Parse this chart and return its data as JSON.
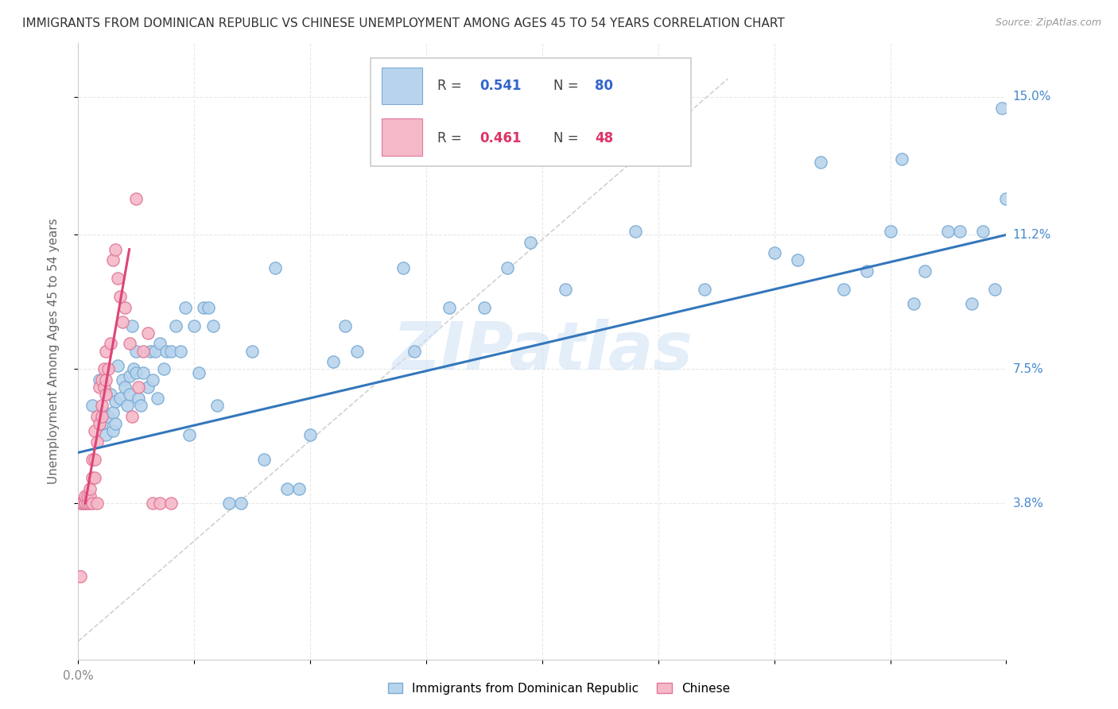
{
  "title": "IMMIGRANTS FROM DOMINICAN REPUBLIC VS CHINESE UNEMPLOYMENT AMONG AGES 45 TO 54 YEARS CORRELATION CHART",
  "source": "Source: ZipAtlas.com",
  "ylabel": "Unemployment Among Ages 45 to 54 years",
  "ytick_labels": [
    "3.8%",
    "7.5%",
    "11.2%",
    "15.0%"
  ],
  "ytick_values": [
    0.038,
    0.075,
    0.112,
    0.15
  ],
  "xlim": [
    0.0,
    0.4
  ],
  "ylim": [
    -0.005,
    0.165
  ],
  "legend_r1_text": "R = ",
  "legend_r1_val": "0.541",
  "legend_n1_text": "N = ",
  "legend_n1_val": "80",
  "legend_r2_text": "R = ",
  "legend_r2_val": "0.461",
  "legend_n2_text": "N = ",
  "legend_n2_val": "48",
  "watermark": "ZIPatlas",
  "blue_color": "#b8d4ed",
  "blue_edge": "#7aabd4",
  "pink_color": "#f5b8c8",
  "pink_edge": "#e07898",
  "line_blue": "#3377bb",
  "line_pink": "#dd4477",
  "line_gray": "#cccccc",
  "blue_scatter_x": [
    0.006,
    0.009,
    0.01,
    0.011,
    0.012,
    0.013,
    0.014,
    0.015,
    0.015,
    0.016,
    0.016,
    0.017,
    0.018,
    0.019,
    0.02,
    0.021,
    0.022,
    0.022,
    0.023,
    0.024,
    0.025,
    0.025,
    0.026,
    0.027,
    0.028,
    0.03,
    0.031,
    0.032,
    0.033,
    0.034,
    0.035,
    0.037,
    0.038,
    0.04,
    0.042,
    0.044,
    0.046,
    0.048,
    0.05,
    0.052,
    0.054,
    0.056,
    0.058,
    0.06,
    0.065,
    0.07,
    0.075,
    0.08,
    0.085,
    0.09,
    0.095,
    0.1,
    0.11,
    0.115,
    0.12,
    0.14,
    0.145,
    0.16,
    0.175,
    0.185,
    0.195,
    0.21,
    0.24,
    0.27,
    0.3,
    0.32,
    0.34,
    0.355,
    0.365,
    0.375,
    0.385,
    0.39,
    0.395,
    0.398,
    0.4,
    0.38,
    0.36,
    0.35,
    0.33,
    0.31
  ],
  "blue_scatter_y": [
    0.065,
    0.072,
    0.06,
    0.063,
    0.057,
    0.062,
    0.068,
    0.058,
    0.063,
    0.066,
    0.06,
    0.076,
    0.067,
    0.072,
    0.07,
    0.065,
    0.073,
    0.068,
    0.087,
    0.075,
    0.074,
    0.08,
    0.067,
    0.065,
    0.074,
    0.07,
    0.08,
    0.072,
    0.08,
    0.067,
    0.082,
    0.075,
    0.08,
    0.08,
    0.087,
    0.08,
    0.092,
    0.057,
    0.087,
    0.074,
    0.092,
    0.092,
    0.087,
    0.065,
    0.038,
    0.038,
    0.08,
    0.05,
    0.103,
    0.042,
    0.042,
    0.057,
    0.077,
    0.087,
    0.08,
    0.103,
    0.08,
    0.092,
    0.092,
    0.103,
    0.11,
    0.097,
    0.113,
    0.097,
    0.107,
    0.132,
    0.102,
    0.133,
    0.102,
    0.113,
    0.093,
    0.113,
    0.097,
    0.147,
    0.122,
    0.113,
    0.093,
    0.113,
    0.097,
    0.105
  ],
  "pink_scatter_x": [
    0.001,
    0.001,
    0.002,
    0.002,
    0.003,
    0.003,
    0.003,
    0.004,
    0.004,
    0.005,
    0.005,
    0.005,
    0.006,
    0.006,
    0.006,
    0.007,
    0.007,
    0.007,
    0.008,
    0.008,
    0.008,
    0.009,
    0.009,
    0.01,
    0.01,
    0.01,
    0.011,
    0.011,
    0.012,
    0.012,
    0.012,
    0.013,
    0.014,
    0.015,
    0.016,
    0.017,
    0.018,
    0.019,
    0.02,
    0.022,
    0.023,
    0.025,
    0.026,
    0.028,
    0.03,
    0.032,
    0.035,
    0.04
  ],
  "pink_scatter_y": [
    0.038,
    0.018,
    0.038,
    0.038,
    0.038,
    0.038,
    0.04,
    0.038,
    0.04,
    0.038,
    0.04,
    0.042,
    0.038,
    0.045,
    0.05,
    0.045,
    0.05,
    0.058,
    0.055,
    0.062,
    0.038,
    0.06,
    0.07,
    0.062,
    0.065,
    0.072,
    0.07,
    0.075,
    0.068,
    0.072,
    0.08,
    0.075,
    0.082,
    0.105,
    0.108,
    0.1,
    0.095,
    0.088,
    0.092,
    0.082,
    0.062,
    0.122,
    0.07,
    0.08,
    0.085,
    0.038,
    0.038,
    0.038
  ],
  "blue_line_x": [
    0.0,
    0.4
  ],
  "blue_line_y": [
    0.052,
    0.112
  ],
  "pink_line_x": [
    0.003,
    0.022
  ],
  "pink_line_y": [
    0.038,
    0.108
  ],
  "gray_line_x": [
    0.0,
    0.28
  ],
  "gray_line_y": [
    0.0,
    0.155
  ],
  "xtick_positions": [
    0.0,
    0.05,
    0.1,
    0.15,
    0.2,
    0.25,
    0.3,
    0.35,
    0.4
  ],
  "grid_color": "#e8e8e8",
  "title_color": "#333333",
  "source_color": "#999999",
  "ylabel_color": "#666666",
  "ytick_color": "#4488cc",
  "xtick_color": "#888888"
}
